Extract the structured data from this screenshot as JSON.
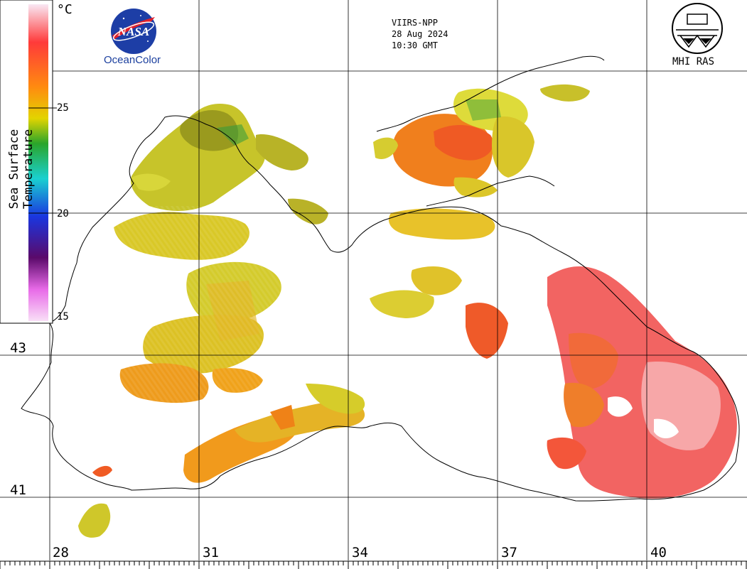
{
  "header": {
    "satellite": "VIIRS-NPP",
    "date": "28 Aug 2024",
    "time": "10:30 GMT"
  },
  "logos": {
    "left_name": "NASA",
    "left_caption": "OceanColor",
    "right_caption": "MHI RAS"
  },
  "colorbar": {
    "title": "Sea Surface Temperature",
    "unit": "°C",
    "ticks": [
      "25",
      "20",
      "15"
    ],
    "colors": [
      "#f9e8f4",
      "#ff3a3a",
      "#ff8a10",
      "#e3d400",
      "#2aa52a",
      "#1ad0d0",
      "#1a36e0",
      "#5a0a6a",
      "#e86ae8",
      "#f9e0f7"
    ]
  },
  "grid": {
    "latitude_labels": [
      "43",
      "41"
    ],
    "longitude_labels": [
      "28",
      "31",
      "34",
      "37",
      "40"
    ]
  },
  "legend_icons": [
    "nasa-logo",
    "mhi-ras-logo"
  ]
}
